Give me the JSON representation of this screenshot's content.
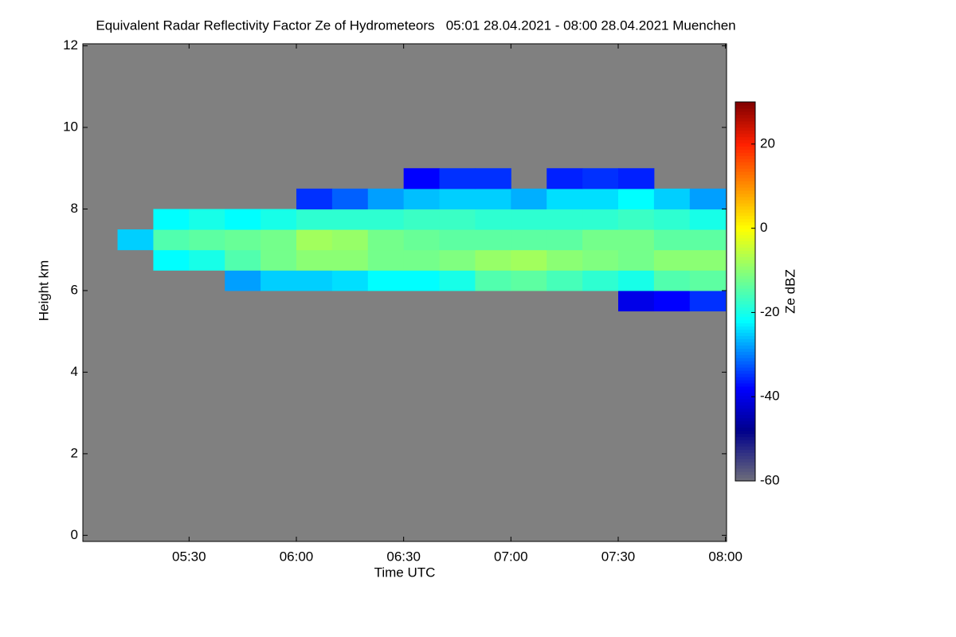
{
  "chart_data": {
    "type": "heatmap",
    "title": "Equivalent Radar Reflectivity Factor Ze of Hydrometeors   05:01 28.04.2021 - 08:00 28.04.2021 Muenchen",
    "x_label": "Time UTC",
    "y_label": "Height km",
    "colorbar_label": "Ze dBZ",
    "background": "#808080",
    "x_bins": [
      310,
      320,
      330,
      340,
      350,
      360,
      370,
      380,
      390,
      400,
      410,
      420,
      430,
      440,
      450,
      460,
      470,
      480
    ],
    "y_bins": [
      5.5,
      6,
      6.5,
      7,
      7.5,
      8,
      8.5,
      9
    ],
    "z": [
      [
        null,
        null,
        null,
        null,
        null,
        null,
        null,
        null,
        null,
        null,
        null,
        null,
        null,
        null,
        -40,
        -38,
        -35
      ],
      [
        null,
        null,
        null,
        -28,
        -25,
        -25,
        -24,
        -22,
        -22,
        -20,
        -15,
        -14,
        -16,
        -18,
        -20,
        -15,
        -14
      ],
      [
        null,
        -22,
        -20,
        -15,
        -12,
        -10,
        -10,
        -12,
        -12,
        -11,
        -9,
        -8,
        -10,
        -11,
        -12,
        -10,
        -10
      ],
      [
        -25,
        -15,
        -14,
        -13,
        -12,
        -8,
        -9,
        -12,
        -13,
        -14,
        -14,
        -14,
        -14,
        -12,
        -12,
        -14,
        -14
      ],
      [
        null,
        -22,
        -20,
        -22,
        -20,
        -18,
        -18,
        -18,
        -17,
        -17,
        -18,
        -18,
        -18,
        -18,
        -17,
        -18,
        -20
      ],
      [
        null,
        null,
        null,
        null,
        null,
        -35,
        -32,
        -28,
        -26,
        -25,
        -25,
        -27,
        -24,
        -24,
        -22,
        -25,
        -28
      ],
      [
        null,
        null,
        null,
        null,
        null,
        null,
        null,
        null,
        -38,
        -35,
        -35,
        null,
        -36,
        -35,
        -36,
        null,
        null
      ]
    ],
    "xlim": [
      300.3,
      480.3
    ],
    "xticks": [
      {
        "value": 330,
        "label": "05:30"
      },
      {
        "value": 360,
        "label": "06:00"
      },
      {
        "value": 390,
        "label": "06:30"
      },
      {
        "value": 420,
        "label": "07:00"
      },
      {
        "value": 450,
        "label": "07:30"
      },
      {
        "value": 480,
        "label": "08:00"
      }
    ],
    "ylim": [
      -0.15,
      12.05
    ],
    "yticks": [
      0,
      2,
      4,
      6,
      8,
      10,
      12
    ],
    "zlim": [
      -60,
      30
    ],
    "zticks": [
      -60,
      -40,
      -20,
      0,
      20
    ],
    "colorscale": [
      [
        -60,
        "#6e6e7a"
      ],
      [
        -48,
        "#00008c"
      ],
      [
        -38,
        "#0000ff"
      ],
      [
        -22,
        "#00ffff"
      ],
      [
        0,
        "#ffff00"
      ],
      [
        20,
        "#ff2000"
      ],
      [
        30,
        "#800000"
      ]
    ]
  }
}
